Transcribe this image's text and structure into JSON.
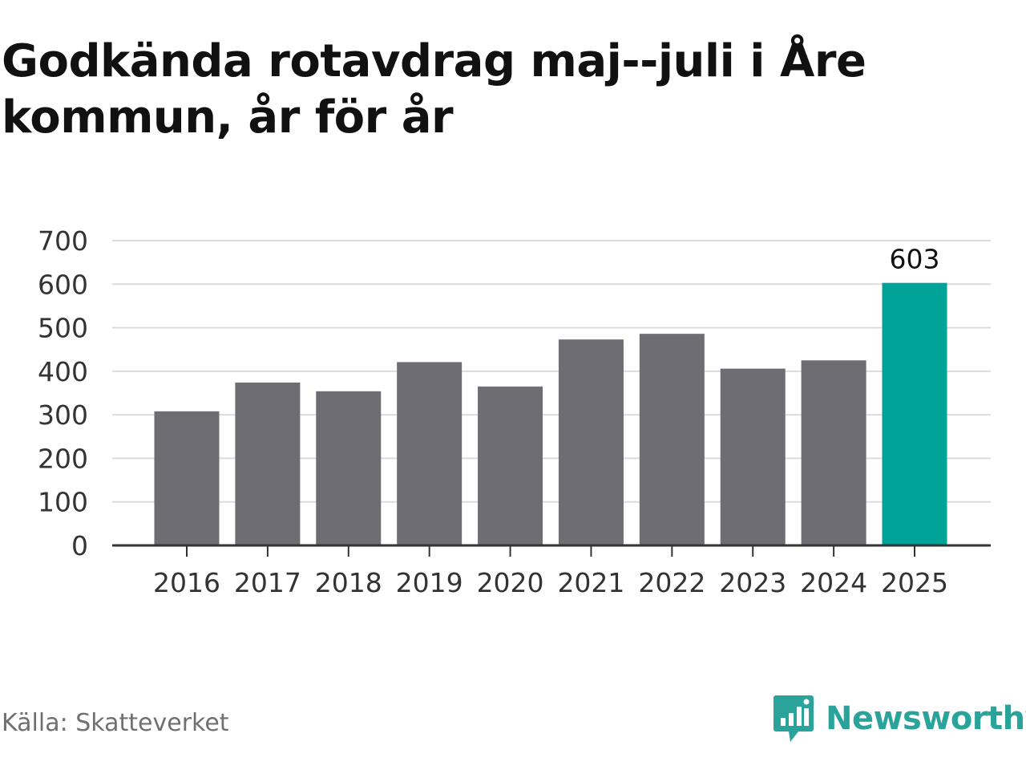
{
  "title": "Godkända rotavdrag maj--juli i Åre kommun, år för år",
  "source": "Källa: Skatteverket",
  "brand": {
    "name": "Newsworthy",
    "icon": "newsworthy-logo-icon",
    "color": "#2aa39a"
  },
  "colors": {
    "bar": "#6e6d73",
    "highlight": "#00a398",
    "grid": "#dcdcdc",
    "axis": "#333333"
  },
  "chart_data": {
    "type": "bar",
    "categories": [
      "2016",
      "2017",
      "2018",
      "2019",
      "2020",
      "2021",
      "2022",
      "2023",
      "2024",
      "2025"
    ],
    "values": [
      308,
      374,
      354,
      421,
      365,
      473,
      486,
      406,
      425,
      603
    ],
    "highlight_index": 9,
    "data_labels": [
      {
        "index": 9,
        "text": "603"
      }
    ],
    "ylim": [
      0,
      700
    ],
    "yticks": [
      "0",
      "100",
      "200",
      "300",
      "400",
      "500",
      "600",
      "700"
    ],
    "grid": true,
    "legend": "none"
  }
}
